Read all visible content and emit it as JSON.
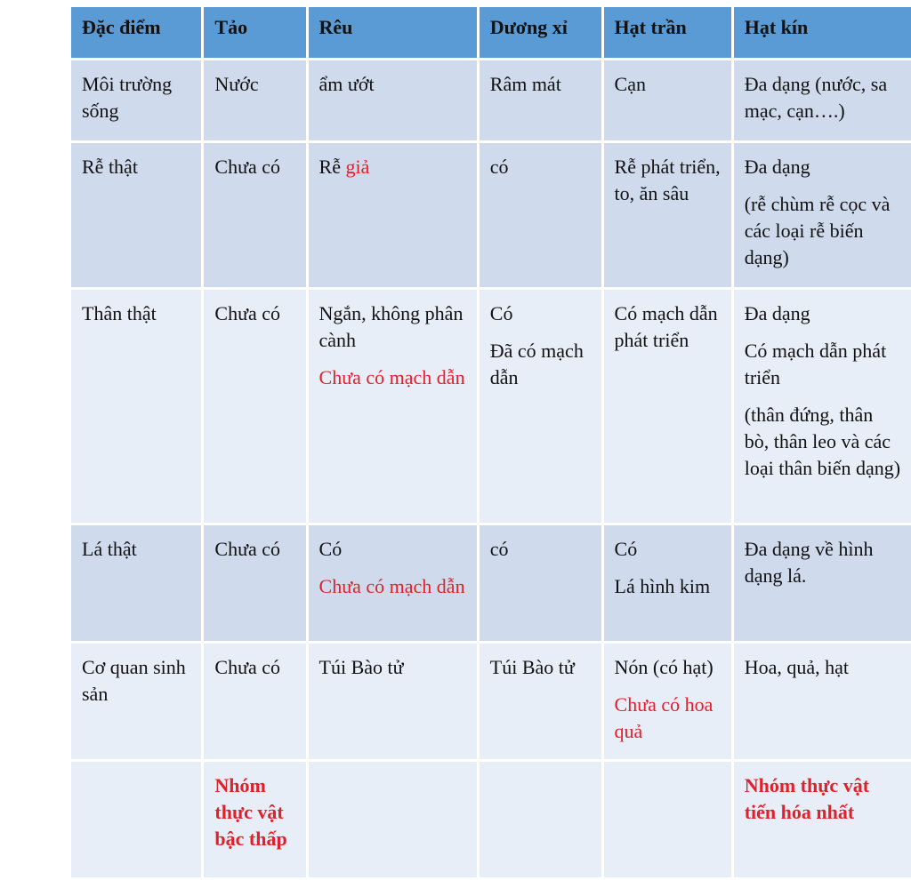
{
  "headers": [
    "Đặc điểm",
    "Tảo",
    "Rêu",
    "Dương xỉ",
    "Hạt trần",
    "Hạt kín"
  ],
  "colors": {
    "header": "#5b9bd5",
    "row_dark": "#cfdbed",
    "row_light": "#e8eef7",
    "highlight_text": "#e0202a"
  },
  "rows": [
    {
      "shade": "dark",
      "cells": [
        [
          [
            {
              "t": "Môi trường sống"
            }
          ]
        ],
        [
          [
            {
              "t": "Nước"
            }
          ]
        ],
        [
          [
            {
              "t": "ẩm ướt"
            }
          ]
        ],
        [
          [
            {
              "t": "Râm mát"
            }
          ]
        ],
        [
          [
            {
              "t": "Cạn"
            }
          ]
        ],
        [
          [
            {
              "t": "Đa dạng (nước, sa mạc, cạn….)"
            }
          ]
        ]
      ]
    },
    {
      "shade": "dark",
      "cells": [
        [
          [
            {
              "t": "Rễ thật"
            }
          ]
        ],
        [
          [
            {
              "t": "Chưa có"
            }
          ]
        ],
        [
          [
            {
              "t": "Rễ "
            },
            {
              "t": "giả",
              "red": true
            }
          ]
        ],
        [
          [
            {
              "t": "có"
            }
          ]
        ],
        [
          [
            {
              "t": "Rễ phát triển, to, ăn sâu"
            }
          ]
        ],
        [
          [
            {
              "t": "Đa dạng"
            }
          ],
          [
            {
              "t": "(rễ chùm rễ cọc và các loại rễ biến dạng)"
            }
          ]
        ]
      ]
    },
    {
      "shade": "light",
      "cells": [
        [
          [
            {
              "t": "Thân thật"
            }
          ]
        ],
        [
          [
            {
              "t": "Chưa có"
            }
          ]
        ],
        [
          [
            {
              "t": "Ngắn, không phân cành"
            }
          ],
          [
            {
              "t": "Chưa có mạch dẫn",
              "red": true
            }
          ]
        ],
        [
          [
            {
              "t": "Có"
            }
          ],
          [
            {
              "t": "Đã có mạch dẫn"
            }
          ]
        ],
        [
          [
            {
              "t": "Có mạch dẫn phát triển"
            }
          ]
        ],
        [
          [
            {
              "t": "Đa dạng"
            }
          ],
          [
            {
              "t": "Có mạch dẫn phát triển"
            }
          ],
          [
            {
              "t": "(thân đứng, thân bò, thân leo và các loại thân biến dạng)"
            }
          ]
        ]
      ]
    },
    {
      "shade": "dark",
      "cells": [
        [
          [
            {
              "t": "Lá thật"
            }
          ]
        ],
        [
          [
            {
              "t": "Chưa có"
            }
          ]
        ],
        [
          [
            {
              "t": "Có"
            }
          ],
          [
            {
              "t": "Chưa có mạch dẫn",
              "red": true
            }
          ]
        ],
        [
          [
            {
              "t": "có"
            }
          ]
        ],
        [
          [
            {
              "t": "Có"
            }
          ],
          [
            {
              "t": "Lá hình kim"
            }
          ]
        ],
        [
          [
            {
              "t": "Đa dạng về hình dạng lá."
            }
          ]
        ]
      ]
    },
    {
      "shade": "light",
      "cells": [
        [
          [
            {
              "t": "Cơ quan sinh sản"
            }
          ]
        ],
        [
          [
            {
              "t": "Chưa có"
            }
          ]
        ],
        [
          [
            {
              "t": "Túi Bào tử"
            }
          ]
        ],
        [
          [
            {
              "t": "Túi Bào tử"
            }
          ]
        ],
        [
          [
            {
              "t": "Nón (có hạt)"
            }
          ],
          [
            {
              "t": "Chưa có hoa quả",
              "red": true
            }
          ]
        ],
        [
          [
            {
              "t": "Hoa, quả, hạt"
            }
          ]
        ]
      ]
    },
    {
      "shade": "light",
      "cells": [
        [],
        [
          [
            {
              "t": "Nhóm thực vật bậc thấp",
              "red": true,
              "bold": true
            }
          ]
        ],
        [],
        [],
        [],
        [
          [
            {
              "t": "Nhóm thực vật tiến hóa nhất",
              "red": true,
              "bold": true
            }
          ]
        ]
      ]
    }
  ]
}
